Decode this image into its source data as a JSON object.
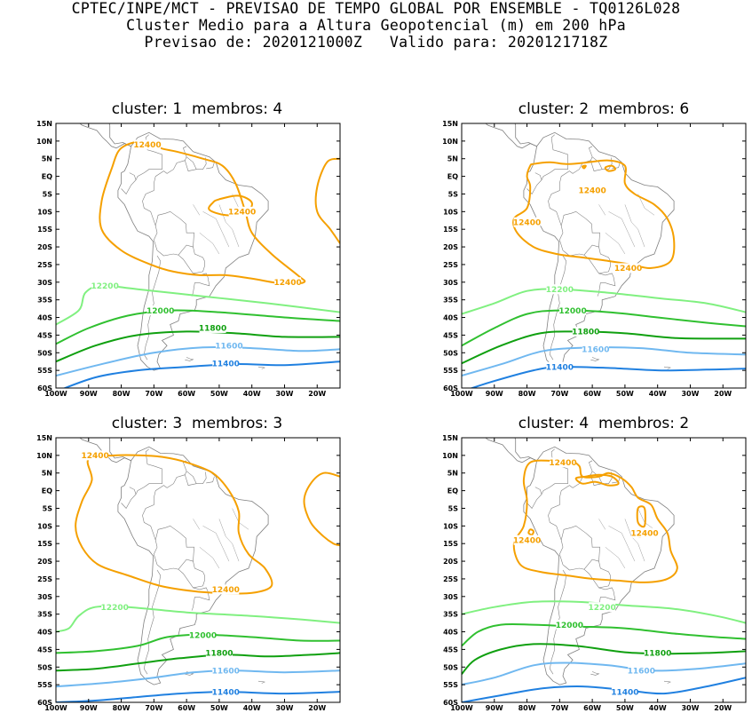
{
  "header": {
    "line1": "CPTEC/INPE/MCT - PREVISAO DE TEMPO GLOBAL POR ENSEMBLE - TQ0126L028",
    "line2": "Cluster Medio para a Altura Geopotencial (m) em 200 hPa",
    "line3": "Previsao de: 2020121000Z   Valido para: 2020121718Z"
  },
  "axes": {
    "lat_labels": [
      "15N",
      "10N",
      "5N",
      "EQ",
      "5S",
      "10S",
      "15S",
      "20S",
      "25S",
      "30S",
      "35S",
      "40S",
      "45S",
      "50S",
      "55S",
      "60S"
    ],
    "lon_labels": [
      "100W",
      "90W",
      "80W",
      "70W",
      "60W",
      "50W",
      "40W",
      "30W",
      "20W"
    ],
    "lat_range": [
      -60,
      15
    ],
    "lon_range": [
      -100,
      -13
    ]
  },
  "colors": {
    "c12400": "#f5a000",
    "c12200": "#80f080",
    "c12000": "#30c030",
    "c11800": "#10a010",
    "c11600": "#70b8f0",
    "c11400": "#2080e0",
    "coast": "#808080"
  },
  "panels": [
    {
      "title": "cluster: 1  membros: 4",
      "labels": [
        {
          "text": "12400",
          "lon": -72,
          "lat": 9,
          "level": "c12400"
        },
        {
          "text": "12400",
          "lon": -43,
          "lat": -10,
          "level": "c12400"
        },
        {
          "text": "12400",
          "lon": -29,
          "lat": -30,
          "level": "c12400"
        },
        {
          "text": "12200",
          "lon": -85,
          "lat": -31,
          "level": "c12200"
        },
        {
          "text": "12000",
          "lon": -68,
          "lat": -38,
          "level": "c12000"
        },
        {
          "text": "11800",
          "lon": -52,
          "lat": -43,
          "level": "c11800"
        },
        {
          "text": "11600",
          "lon": -47,
          "lat": -48,
          "level": "c11600"
        },
        {
          "text": "11400",
          "lon": -48,
          "lat": -53,
          "level": "c11400"
        }
      ]
    },
    {
      "title": "cluster: 2  membros: 6",
      "labels": [
        {
          "text": "12400",
          "lon": -60,
          "lat": -4,
          "level": "c12400"
        },
        {
          "text": "12400",
          "lon": -80,
          "lat": -13,
          "level": "c12400"
        },
        {
          "text": "12400",
          "lon": -49,
          "lat": -26,
          "level": "c12400"
        },
        {
          "text": "12200",
          "lon": -70,
          "lat": -32,
          "level": "c12200"
        },
        {
          "text": "12000",
          "lon": -66,
          "lat": -38,
          "level": "c12000"
        },
        {
          "text": "11800",
          "lon": -62,
          "lat": -44,
          "level": "c11800"
        },
        {
          "text": "11600",
          "lon": -59,
          "lat": -49,
          "level": "c11600"
        },
        {
          "text": "11400",
          "lon": -70,
          "lat": -54,
          "level": "c11400"
        }
      ]
    },
    {
      "title": "cluster: 3  membros: 3",
      "labels": [
        {
          "text": "12400",
          "lon": -88,
          "lat": 10,
          "level": "c12400"
        },
        {
          "text": "12400",
          "lon": -48,
          "lat": -28,
          "level": "c12400"
        },
        {
          "text": "12200",
          "lon": -82,
          "lat": -33,
          "level": "c12200"
        },
        {
          "text": "12000",
          "lon": -55,
          "lat": -41,
          "level": "c12000"
        },
        {
          "text": "11800",
          "lon": -50,
          "lat": -46,
          "level": "c11800"
        },
        {
          "text": "11600",
          "lon": -48,
          "lat": -51,
          "level": "c11600"
        },
        {
          "text": "11400",
          "lon": -48,
          "lat": -57,
          "level": "c11400"
        }
      ]
    },
    {
      "title": "cluster: 4  membros: 2",
      "labels": [
        {
          "text": "12400",
          "lon": -69,
          "lat": 8,
          "level": "c12400"
        },
        {
          "text": "12400",
          "lon": -80,
          "lat": -14,
          "level": "c12400"
        },
        {
          "text": "12400",
          "lon": -44,
          "lat": -12,
          "level": "c12400"
        },
        {
          "text": "12200",
          "lon": -57,
          "lat": -33,
          "level": "c12200"
        },
        {
          "text": "12000",
          "lon": -67,
          "lat": -38,
          "level": "c12000"
        },
        {
          "text": "11800",
          "lon": -40,
          "lat": -46,
          "level": "c11800"
        },
        {
          "text": "11600",
          "lon": -45,
          "lat": -51,
          "level": "c11600"
        },
        {
          "text": "11400",
          "lon": -50,
          "lat": -57,
          "level": "c11400"
        }
      ]
    }
  ]
}
